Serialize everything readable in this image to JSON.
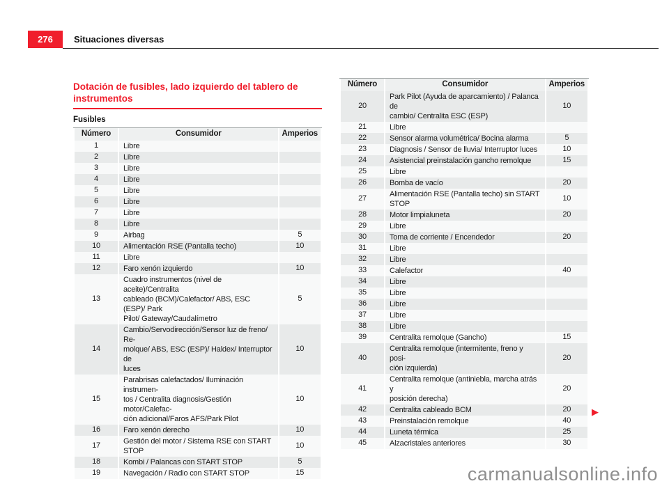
{
  "page": {
    "number": "276",
    "section_title": "Situaciones diversas",
    "watermark": "carmanualsonline.info"
  },
  "colors": {
    "accent_red": "#f01e2c",
    "row_alt_gray": "#e8eaea",
    "table_header_bg": "#eef0f0",
    "watermark_gray": "#8f8f8f"
  },
  "icons": {
    "next_page_arrow": "▶"
  },
  "content": {
    "heading": "Dotación de fusibles, lado izquierdo del tablero de instrumentos",
    "subheading": "Fusibles"
  },
  "tables": {
    "columns": [
      "Número",
      "Consumidor",
      "Amperios"
    ],
    "left": {
      "rows": [
        {
          "num": "1",
          "consumidor": "Libre",
          "amperios": ""
        },
        {
          "num": "2",
          "consumidor": "Libre",
          "amperios": ""
        },
        {
          "num": "3",
          "consumidor": "Libre",
          "amperios": ""
        },
        {
          "num": "4",
          "consumidor": "Libre",
          "amperios": ""
        },
        {
          "num": "5",
          "consumidor": "Libre",
          "amperios": ""
        },
        {
          "num": "6",
          "consumidor": "Libre",
          "amperios": ""
        },
        {
          "num": "7",
          "consumidor": "Libre",
          "amperios": ""
        },
        {
          "num": "8",
          "consumidor": "Libre",
          "amperios": ""
        },
        {
          "num": "9",
          "consumidor": "Airbag",
          "amperios": "5"
        },
        {
          "num": "10",
          "consumidor": "Alimentación RSE (Pantalla techo)",
          "amperios": "10"
        },
        {
          "num": "11",
          "consumidor": "Libre",
          "amperios": ""
        },
        {
          "num": "12",
          "consumidor": "Faro xenón izquierdo",
          "amperios": "10"
        },
        {
          "num": "13",
          "consumidor": "Cuadro instrumentos (nivel de aceite)/Centralita\ncableado (BCM)/Calefactor/ ABS, ESC (ESP)/ Park\nPilot/ Gateway/Caudalímetro",
          "amperios": "5"
        },
        {
          "num": "14",
          "consumidor": "Cambio/Servodirección/Sensor luz de freno/ Re-\nmolque/ ABS, ESC (ESP)/ Haldex/ Interruptor de\nluces",
          "amperios": "10"
        },
        {
          "num": "15",
          "consumidor": "Parabrisas calefactados/ Iluminación instrumen-\ntos / Centralita diagnosis/Gestión motor/Calefac-\nción adicional/Faros AFS/Park Pilot",
          "amperios": "10"
        },
        {
          "num": "16",
          "consumidor": "Faro xenón derecho",
          "amperios": "10"
        },
        {
          "num": "17",
          "consumidor": "Gestión del motor / Sistema RSE con START STOP",
          "amperios": "10"
        },
        {
          "num": "18",
          "consumidor": "Kombi / Palancas con START STOP",
          "amperios": "5"
        },
        {
          "num": "19",
          "consumidor": "Navegación / Radio con START STOP",
          "amperios": "15"
        }
      ]
    },
    "right": {
      "rows": [
        {
          "num": "20",
          "consumidor": "Park Pilot (Ayuda de aparcamiento) / Palanca de\ncambio/ Centralita ESC (ESP)",
          "amperios": "10"
        },
        {
          "num": "21",
          "consumidor": "Libre",
          "amperios": ""
        },
        {
          "num": "22",
          "consumidor": "Sensor alarma volumétrica/ Bocina alarma",
          "amperios": "5"
        },
        {
          "num": "23",
          "consumidor": "Diagnosis / Sensor de lluvia/ Interruptor luces",
          "amperios": "10"
        },
        {
          "num": "24",
          "consumidor": "Asistencial preinstalación gancho remolque",
          "amperios": "15"
        },
        {
          "num": "25",
          "consumidor": "Libre",
          "amperios": ""
        },
        {
          "num": "26",
          "consumidor": "Bomba de vacío",
          "amperios": "20"
        },
        {
          "num": "27",
          "consumidor": "Alimentación RSE (Pantalla techo) sin START STOP",
          "amperios": "10"
        },
        {
          "num": "28",
          "consumidor": "Motor limpialuneta",
          "amperios": "20"
        },
        {
          "num": "29",
          "consumidor": "Libre",
          "amperios": ""
        },
        {
          "num": "30",
          "consumidor": "Toma de corriente / Encendedor",
          "amperios": "20"
        },
        {
          "num": "31",
          "consumidor": "Libre",
          "amperios": ""
        },
        {
          "num": "32",
          "consumidor": "Libre",
          "amperios": ""
        },
        {
          "num": "33",
          "consumidor": "Calefactor",
          "amperios": "40"
        },
        {
          "num": "34",
          "consumidor": "Libre",
          "amperios": ""
        },
        {
          "num": "35",
          "consumidor": "Libre",
          "amperios": ""
        },
        {
          "num": "36",
          "consumidor": "Libre",
          "amperios": ""
        },
        {
          "num": "37",
          "consumidor": "Libre",
          "amperios": ""
        },
        {
          "num": "38",
          "consumidor": "Libre",
          "amperios": ""
        },
        {
          "num": "39",
          "consumidor": "Centralita remolque (Gancho)",
          "amperios": "15"
        },
        {
          "num": "40",
          "consumidor": "Centralita remolque (intermitente, freno y posi-\nción izquierda)",
          "amperios": "20"
        },
        {
          "num": "41",
          "consumidor": "Centralita remolque (antiniebla, marcha atrás y\nposición derecha)",
          "amperios": "20"
        },
        {
          "num": "42",
          "consumidor": "Centralita cableado BCM",
          "amperios": "20"
        },
        {
          "num": "43",
          "consumidor": "Preinstalación remolque",
          "amperios": "40"
        },
        {
          "num": "44",
          "consumidor": "Luneta térmica",
          "amperios": "25"
        },
        {
          "num": "45",
          "consumidor": "Alzacristales anteriores",
          "amperios": "30"
        }
      ]
    }
  }
}
